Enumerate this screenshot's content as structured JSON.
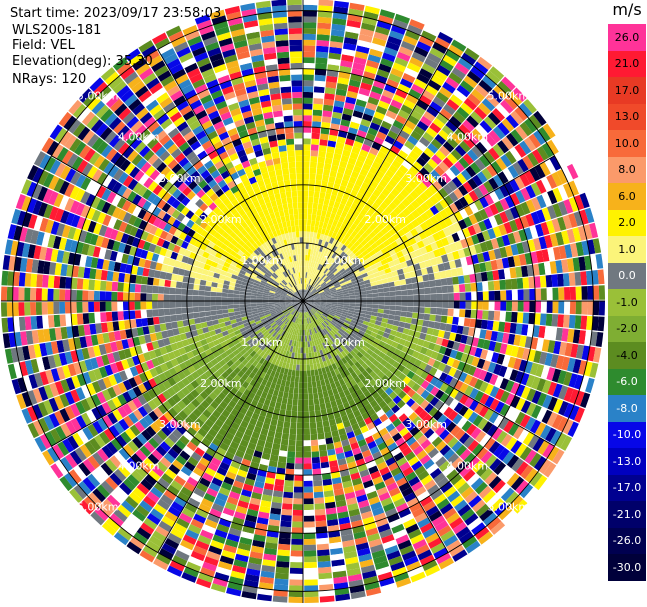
{
  "header": {
    "start_time": "Start time: 2023/09/17 23:58:03",
    "instrument": "WLS200s-181",
    "field": "Field: VEL",
    "elevation": "Elevation(deg): 35.30",
    "nrays": "NRays: 120"
  },
  "colorbar": {
    "unit": "m/s",
    "levels": [
      {
        "label": "26.0",
        "color": "#ff3399"
      },
      {
        "label": "21.0",
        "color": "#ff1a33"
      },
      {
        "label": "17.0",
        "color": "#e83a24"
      },
      {
        "label": "13.0",
        "color": "#f04a2a"
      },
      {
        "label": "10.0",
        "color": "#f86a3a"
      },
      {
        "label": "8.0",
        "color": "#fb9a6a"
      },
      {
        "label": "6.0",
        "color": "#f7b21b"
      },
      {
        "label": "2.0",
        "color": "#fff200"
      },
      {
        "label": "1.0",
        "color": "#fbf47a"
      },
      {
        "label": "0.0",
        "color": "#707880"
      },
      {
        "label": "-1.0",
        "color": "#9ac038"
      },
      {
        "label": "-2.0",
        "color": "#7fae33"
      },
      {
        "label": "-4.0",
        "color": "#5c8c20"
      },
      {
        "label": "-6.0",
        "color": "#2e8b2e"
      },
      {
        "label": "-8.0",
        "color": "#2a82c8"
      },
      {
        "label": "-10.0",
        "color": "#0707e8"
      },
      {
        "label": "-13.0",
        "color": "#0000c0"
      },
      {
        "label": "-17.0",
        "color": "#000090"
      },
      {
        "label": "-21.0",
        "color": "#00006a"
      },
      {
        "label": "-26.0",
        "color": "#000050"
      },
      {
        "label": "-30.0",
        "color": "#00003a"
      }
    ]
  },
  "chart_data": {
    "type": "heatmap",
    "projection": "ppi",
    "field": "VEL",
    "nrays": 120,
    "max_range_km": 5.2,
    "valid_range_km": 2.6,
    "range_rings_km": [
      1.0,
      2.0,
      3.0,
      4.0,
      5.0
    ],
    "ring_labels": [
      "1.00km",
      "2.00km",
      "3.00km",
      "4.00km",
      "5.00km"
    ],
    "radials_deg": [
      0,
      30,
      60,
      90,
      120,
      150,
      180,
      210,
      240,
      270,
      300,
      330
    ],
    "velocity_pattern": {
      "north_sector": "positive 2 to 6 m/s",
      "south_sector": "negative -2 to -8 m/s",
      "near_east_west": "near 0 m/s"
    },
    "colorbar_range": [
      -30.0,
      26.0
    ]
  }
}
